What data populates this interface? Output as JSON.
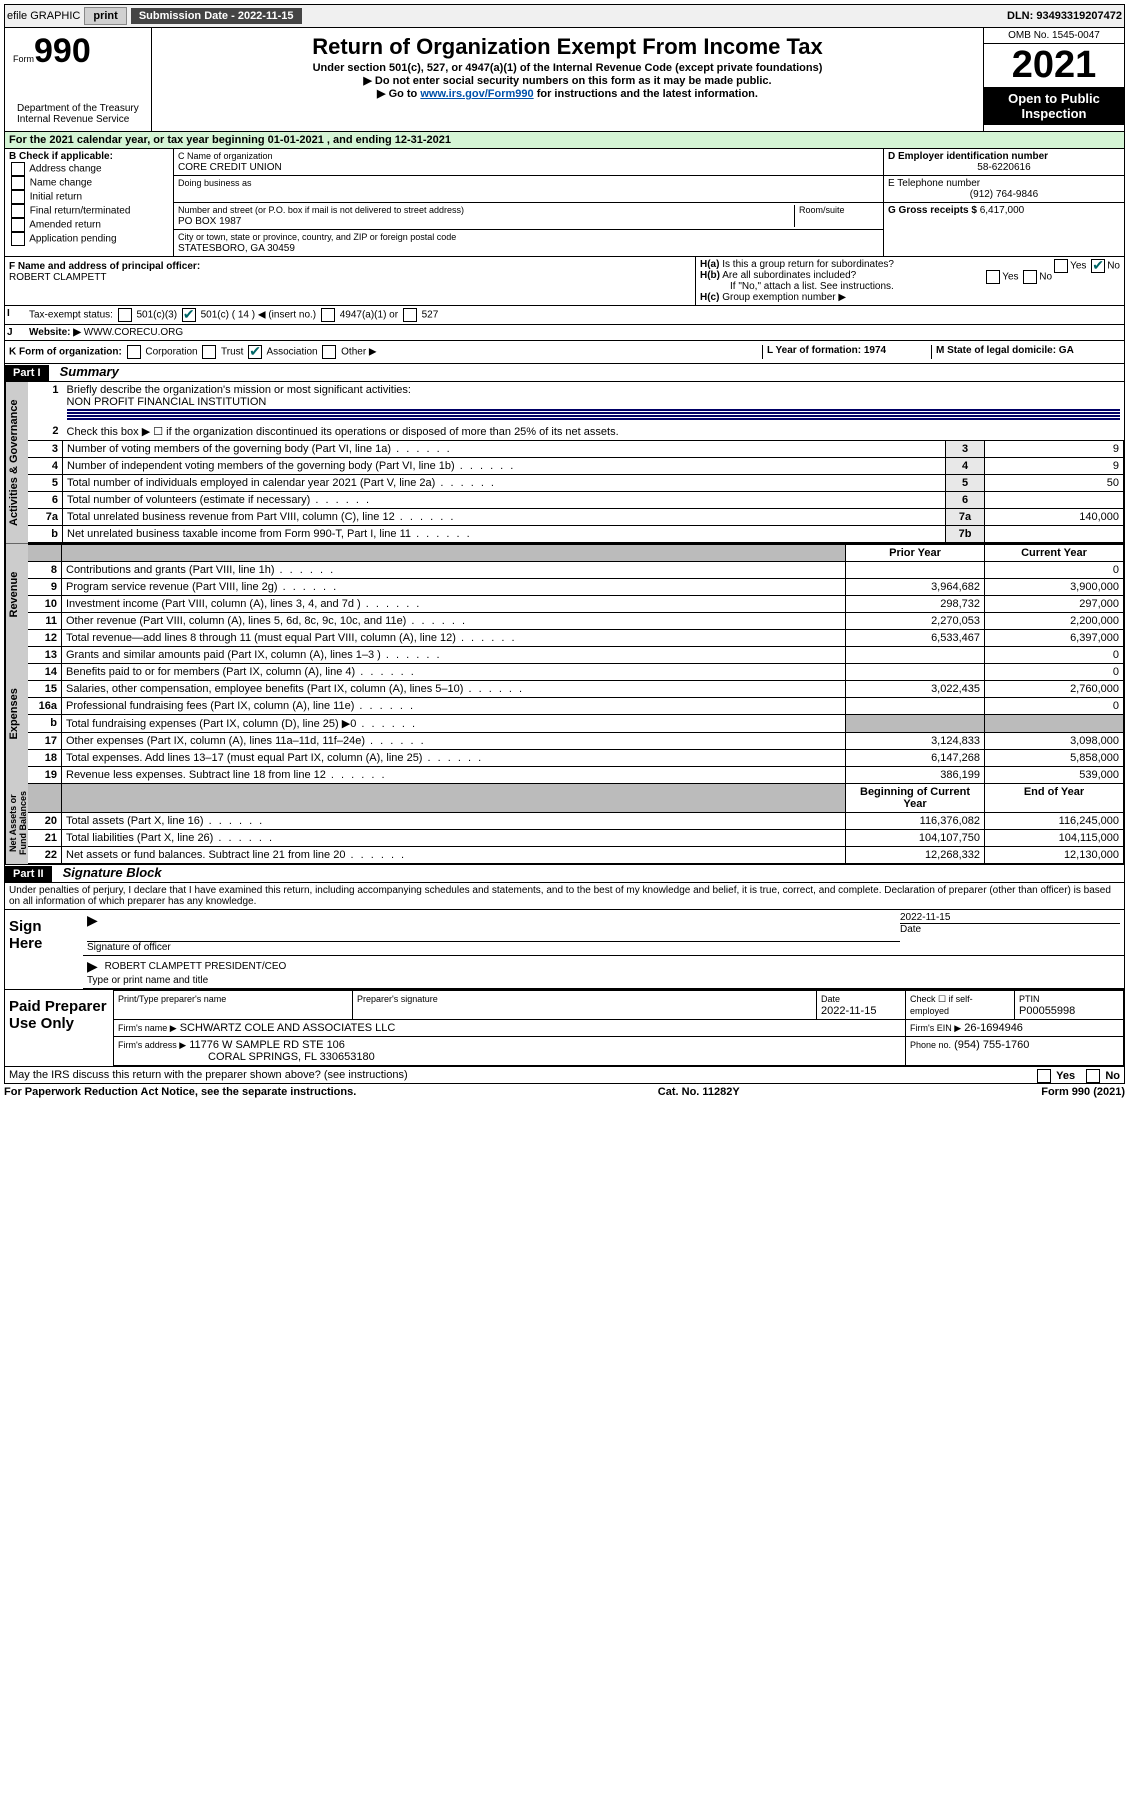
{
  "topbar": {
    "efile": "efile GRAPHIC",
    "print": "print",
    "sub_label": "Submission Date - 2022-11-15",
    "dln": "DLN: 93493319207472"
  },
  "header": {
    "form_label": "Form",
    "form_num": "990",
    "title": "Return of Organization Exempt From Income Tax",
    "sub1": "Under section 501(c), 527, or 4947(a)(1) of the Internal Revenue Code (except private foundations)",
    "sub2": "Do not enter social security numbers on this form as it may be made public.",
    "sub3_pre": "Go to ",
    "sub3_link": "www.irs.gov/Form990",
    "sub3_post": " for instructions and the latest information.",
    "omb": "OMB No. 1545-0047",
    "year": "2021",
    "insp": "Open to Public Inspection",
    "dept": "Department of the Treasury\nInternal Revenue Service"
  },
  "line_a": "For the 2021 calendar year, or tax year beginning 01-01-2021   , and ending 12-31-2021",
  "box_b": {
    "label": "B Check if applicable:",
    "opts": [
      "Address change",
      "Name change",
      "Initial return",
      "Final return/terminated",
      "Amended return",
      "Application pending"
    ]
  },
  "box_c": {
    "label": "C Name of organization",
    "name": "CORE CREDIT UNION",
    "dba_label": "Doing business as",
    "addr_label": "Number and street (or P.O. box if mail is not delivered to street address)",
    "room_label": "Room/suite",
    "addr": "PO BOX 1987",
    "city_label": "City or town, state or province, country, and ZIP or foreign postal code",
    "city": "STATESBORO, GA  30459"
  },
  "box_d": {
    "label": "D Employer identification number",
    "val": "58-6220616",
    "e_label": "E Telephone number",
    "e_val": "(912) 764-9846",
    "g_label": "G Gross receipts $",
    "g_val": "6,417,000"
  },
  "box_f": {
    "label": "F Name and address of principal officer:",
    "val": "ROBERT CLAMPETT"
  },
  "box_h": {
    "ha": "Is this a group return for subordinates?",
    "hb": "Are all subordinates included?",
    "hc_label": "Group exemption number ▶",
    "note": "If \"No,\" attach a list. See instructions.",
    "yes": "Yes",
    "no": "No"
  },
  "line_i": {
    "label": "Tax-exempt status:",
    "opts": [
      "501(c)(3)",
      "501(c) ( 14 ) ◀ (insert no.)",
      "4947(a)(1) or",
      "527"
    ]
  },
  "line_j": {
    "label": "Website: ▶",
    "val": "WWW.CORECU.ORG"
  },
  "line_k": {
    "label": "K Form of organization:",
    "opts": [
      "Corporation",
      "Trust",
      "Association",
      "Other ▶"
    ]
  },
  "line_l": {
    "label": "L Year of formation: 1974"
  },
  "line_m": {
    "label": "M State of legal domicile: GA"
  },
  "part1": {
    "hdr": "Part I",
    "title": "Summary",
    "l1": "Briefly describe the organization's mission or most significant activities:",
    "l1v": "NON PROFIT FINANCIAL INSTITUTION",
    "l2": "Check this box ▶ ☐ if the organization discontinued its operations or disposed of more than 25% of its net assets.",
    "l3": "Number of voting members of the governing body (Part VI, line 1a)",
    "l4": "Number of independent voting members of the governing body (Part VI, line 1b)",
    "l5": "Total number of individuals employed in calendar year 2021 (Part V, line 2a)",
    "l6": "Total number of volunteers (estimate if necessary)",
    "l7a": "Total unrelated business revenue from Part VIII, column (C), line 12",
    "l7b": "Net unrelated business taxable income from Form 990-T, Part I, line 11",
    "v3": "9",
    "v4": "9",
    "v5": "50",
    "v6": "",
    "v7a": "140,000",
    "v7b": "",
    "prior": "Prior Year",
    "current": "Current Year",
    "rows": [
      {
        "n": "8",
        "d": "Contributions and grants (Part VIII, line 1h)",
        "p": "",
        "c": "0"
      },
      {
        "n": "9",
        "d": "Program service revenue (Part VIII, line 2g)",
        "p": "3,964,682",
        "c": "3,900,000"
      },
      {
        "n": "10",
        "d": "Investment income (Part VIII, column (A), lines 3, 4, and 7d )",
        "p": "298,732",
        "c": "297,000"
      },
      {
        "n": "11",
        "d": "Other revenue (Part VIII, column (A), lines 5, 6d, 8c, 9c, 10c, and 11e)",
        "p": "2,270,053",
        "c": "2,200,000"
      },
      {
        "n": "12",
        "d": "Total revenue—add lines 8 through 11 (must equal Part VIII, column (A), line 12)",
        "p": "6,533,467",
        "c": "6,397,000"
      },
      {
        "n": "13",
        "d": "Grants and similar amounts paid (Part IX, column (A), lines 1–3 )",
        "p": "",
        "c": "0"
      },
      {
        "n": "14",
        "d": "Benefits paid to or for members (Part IX, column (A), line 4)",
        "p": "",
        "c": "0"
      },
      {
        "n": "15",
        "d": "Salaries, other compensation, employee benefits (Part IX, column (A), lines 5–10)",
        "p": "3,022,435",
        "c": "2,760,000"
      },
      {
        "n": "16a",
        "d": "Professional fundraising fees (Part IX, column (A), line 11e)",
        "p": "",
        "c": "0"
      },
      {
        "n": "b",
        "d": "Total fundraising expenses (Part IX, column (D), line 25) ▶0",
        "p": "GRAY",
        "c": "GRAY"
      },
      {
        "n": "17",
        "d": "Other expenses (Part IX, column (A), lines 11a–11d, 11f–24e)",
        "p": "3,124,833",
        "c": "3,098,000"
      },
      {
        "n": "18",
        "d": "Total expenses. Add lines 13–17 (must equal Part IX, column (A), line 25)",
        "p": "6,147,268",
        "c": "5,858,000"
      },
      {
        "n": "19",
        "d": "Revenue less expenses. Subtract line 18 from line 12",
        "p": "386,199",
        "c": "539,000"
      }
    ],
    "begin": "Beginning of Current Year",
    "end": "End of Year",
    "rowsB": [
      {
        "n": "20",
        "d": "Total assets (Part X, line 16)",
        "p": "116,376,082",
        "c": "116,245,000"
      },
      {
        "n": "21",
        "d": "Total liabilities (Part X, line 26)",
        "p": "104,107,750",
        "c": "104,115,000"
      },
      {
        "n": "22",
        "d": "Net assets or fund balances. Subtract line 21 from line 20",
        "p": "12,268,332",
        "c": "12,130,000"
      }
    ],
    "tabs": [
      "Activities & Governance",
      "Revenue",
      "Expenses",
      "Net Assets or Fund Balances"
    ]
  },
  "part2": {
    "hdr": "Part II",
    "title": "Signature Block",
    "decl": "Under penalties of perjury, I declare that I have examined this return, including accompanying schedules and statements, and to the best of my knowledge and belief, it is true, correct, and complete. Declaration of preparer (other than officer) is based on all information of which preparer has any knowledge.",
    "sign_here": "Sign Here",
    "sig_officer": "Signature of officer",
    "sig_date": "2022-11-15",
    "date_lbl": "Date",
    "officer": "ROBERT CLAMPETT  PRESIDENT/CEO",
    "type_lbl": "Type or print name and title",
    "paid": "Paid Preparer Use Only",
    "prep_name_lbl": "Print/Type preparer's name",
    "prep_sig_lbl": "Preparer's signature",
    "prep_date": "2022-11-15",
    "check_lbl": "Check ☐ if self-employed",
    "ptin_lbl": "PTIN",
    "ptin": "P00055998",
    "firm_lbl": "Firm's name  ▶",
    "firm": "SCHWARTZ COLE AND ASSOCIATES LLC",
    "ein_lbl": "Firm's EIN ▶",
    "ein": "26-1694946",
    "addr_lbl": "Firm's address ▶",
    "addr1": "11776 W SAMPLE RD STE 106",
    "addr2": "CORAL SPRINGS, FL  330653180",
    "phone_lbl": "Phone no.",
    "phone": "(954) 755-1760",
    "may": "May the IRS discuss this return with the preparer shown above? (see instructions)"
  },
  "footer": {
    "l": "For Paperwork Reduction Act Notice, see the separate instructions.",
    "c": "Cat. No. 11282Y",
    "r": "Form 990 (2021)"
  }
}
